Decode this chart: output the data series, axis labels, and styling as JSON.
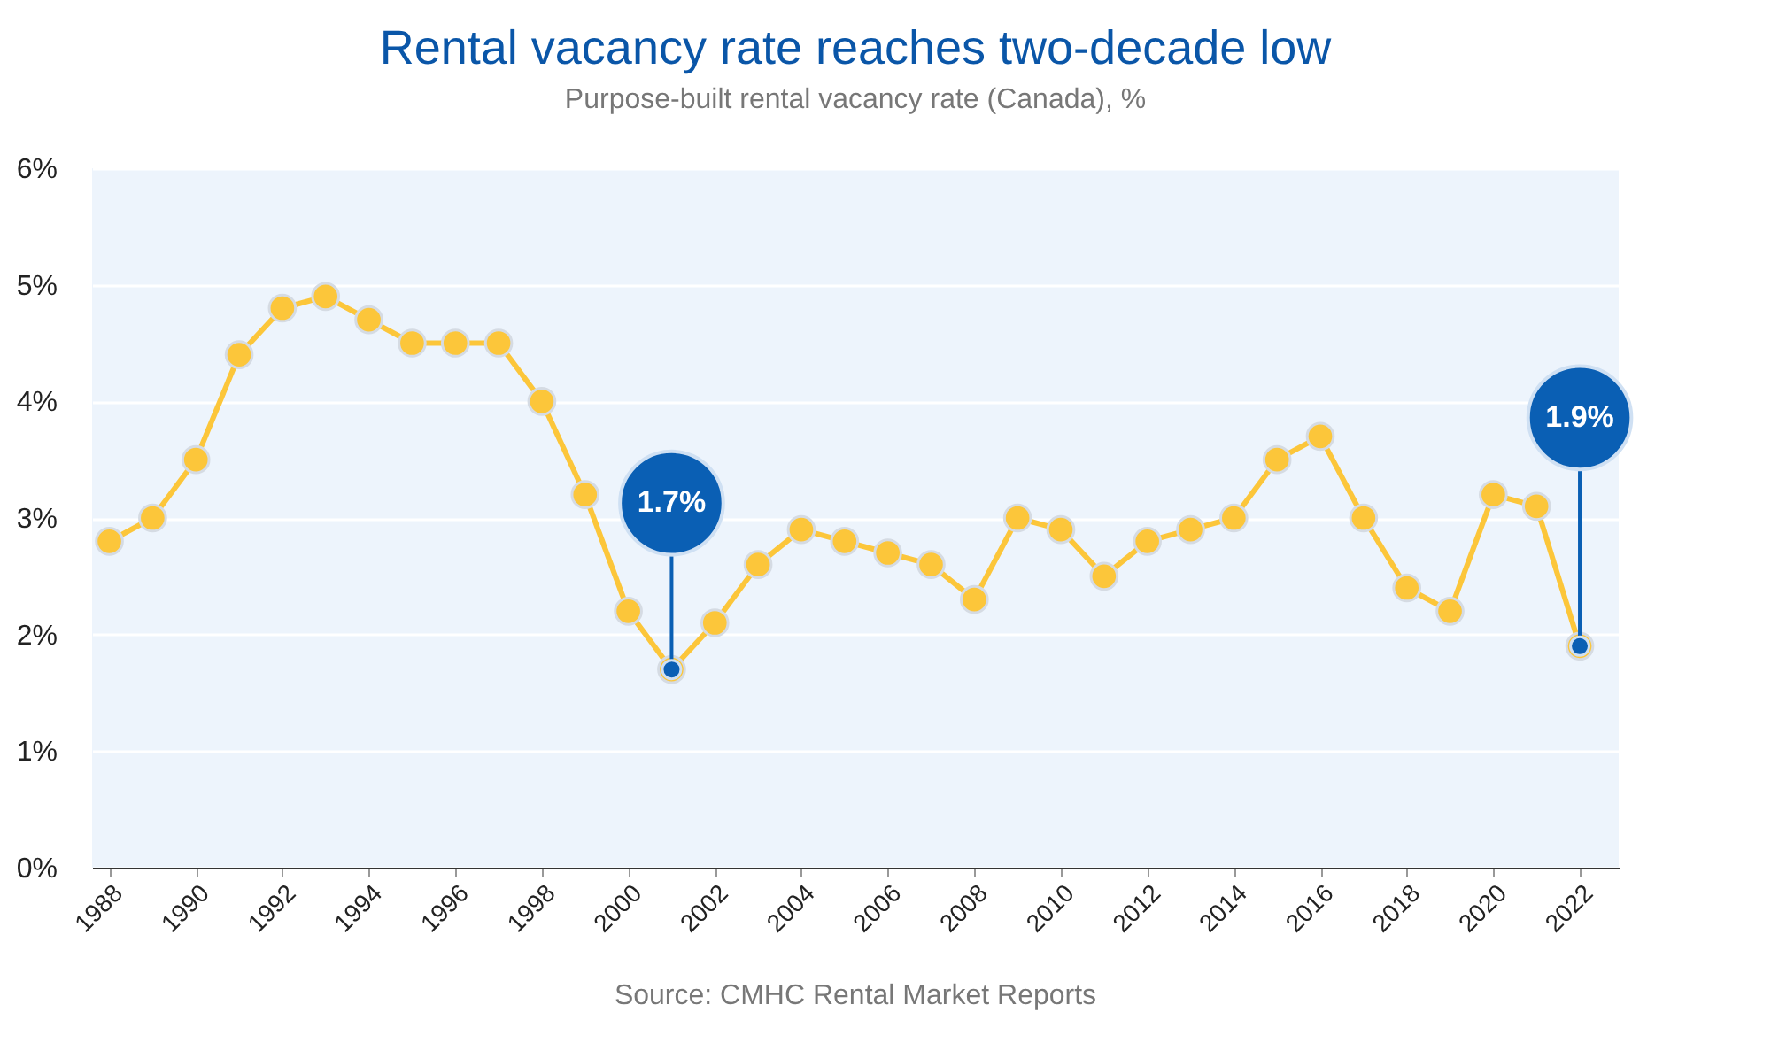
{
  "chart_data": {
    "type": "line",
    "title": "Rental vacancy rate reaches two-decade low",
    "subtitle": "Purpose-built rental vacancy rate (Canada), %",
    "x": [
      1988,
      1989,
      1990,
      1991,
      1992,
      1993,
      1994,
      1995,
      1996,
      1997,
      1998,
      1999,
      2000,
      2001,
      2002,
      2003,
      2004,
      2005,
      2006,
      2007,
      2008,
      2009,
      2010,
      2011,
      2012,
      2013,
      2014,
      2015,
      2016,
      2017,
      2018,
      2019,
      2020,
      2021,
      2022
    ],
    "series": [
      {
        "color": "#fcc63a",
        "values": [
          2.8,
          3.0,
          3.5,
          4.4,
          4.8,
          4.9,
          4.7,
          4.5,
          4.5,
          4.5,
          4.0,
          3.2,
          2.2,
          1.7,
          2.1,
          2.6,
          2.9,
          2.8,
          2.7,
          2.6,
          2.3,
          3.0,
          2.9,
          2.5,
          2.8,
          2.9,
          3.0,
          3.5,
          3.7,
          3.0,
          2.4,
          2.2,
          3.2,
          3.1,
          1.9
        ]
      }
    ],
    "xlim": [
      1987.6,
      2022.9
    ],
    "xticks": [
      1988,
      1990,
      1992,
      1994,
      1996,
      1998,
      2000,
      2002,
      2004,
      2006,
      2008,
      2010,
      2012,
      2014,
      2016,
      2018,
      2020,
      2022
    ],
    "ylim": [
      0,
      6
    ],
    "yticks": [
      {
        "value": 0,
        "label": "0%"
      },
      {
        "value": 1,
        "label": "1%"
      },
      {
        "value": 2,
        "label": "2%"
      },
      {
        "value": 3,
        "label": "3%"
      },
      {
        "value": 4,
        "label": "4%"
      },
      {
        "value": 5,
        "label": "5%"
      },
      {
        "value": 6,
        "label": "6%"
      }
    ],
    "grid": "y",
    "marker": "circle",
    "line_style": "solid",
    "annotations": [
      {
        "text": "1.7%",
        "x": 2001,
        "y": 1.7
      },
      {
        "text": "1.9%",
        "x": 2022,
        "y": 1.9
      },
      "Source: CMHC Rental Market Reports"
    ]
  }
}
